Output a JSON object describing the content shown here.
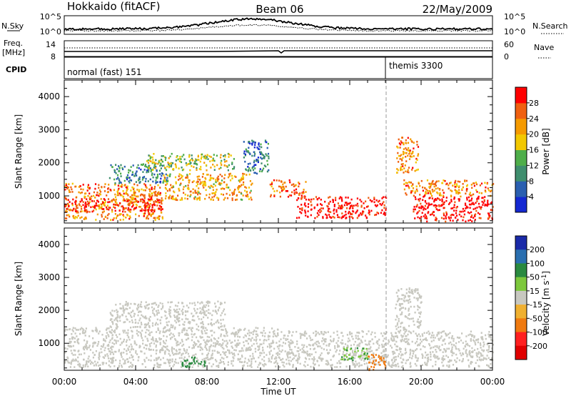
{
  "header": {
    "station": "Hokkaido (fitACF)",
    "beam": "Beam 06",
    "date": "22/May/2009"
  },
  "summary": {
    "nsky_label": "N.Sky",
    "nsky_ticks": [
      "10^5",
      "10^0"
    ],
    "nsearch_label": "N.Search",
    "nsearch_ticks": [
      "10^5",
      "10^0"
    ],
    "freq_label_line1": "Freq.",
    "freq_label_line2": "[MHz]",
    "freq_ticks": [
      "14",
      "8"
    ],
    "nave_label": "Nave",
    "nave_ticks": [
      "60",
      "0"
    ],
    "cpid_label": "CPID",
    "cpid_modes": [
      {
        "name": "normal (fast) 151",
        "start_hour": 0,
        "end_hour": 18
      },
      {
        "name": "themis 3300",
        "start_hour": 18,
        "end_hour": 24
      }
    ]
  },
  "x_axis": {
    "label": "Time UT",
    "ticks": [
      "00:00",
      "04:00",
      "08:00",
      "12:00",
      "16:00",
      "20:00",
      "00:00"
    ],
    "tick_hours": [
      0,
      4,
      8,
      12,
      16,
      20,
      24
    ]
  },
  "power_panel": {
    "ylabel": "Slant Range [km]",
    "yticks": [
      "1000",
      "2000",
      "3000",
      "4000"
    ],
    "colorbar_label": "Power [dB]",
    "colorbar_ticks": [
      "4",
      "8",
      "12",
      "16",
      "20",
      "24",
      "28"
    ],
    "colors": [
      "#1428d2",
      "#2a5fb0",
      "#3f8e6e",
      "#4fae4a",
      "#f2c800",
      "#f59a00",
      "#f06010",
      "#ff0000"
    ]
  },
  "velocity_panel": {
    "ylabel": "Slant Range [km]",
    "yticks": [
      "1000",
      "2000",
      "3000",
      "4000"
    ],
    "colorbar_label": "Velocity [m s",
    "colorbar_label_sup": "-1",
    "colorbar_label_end": "]",
    "colorbar_ticks": [
      "200",
      "100",
      "50",
      "15",
      "-15",
      "-50",
      "-100",
      "-200"
    ],
    "colors": [
      "#1a2aa8",
      "#2a6fb0",
      "#2a8a40",
      "#7dc83c",
      "#c8c8c0",
      "#f0b030",
      "#f07a10",
      "#ff2020",
      "#e00000"
    ]
  },
  "chart_data": [
    {
      "type": "heatmap",
      "title": "Power",
      "xlabel": "Time UT",
      "ylabel": "Slant Range [km]",
      "x_range_hours": [
        0,
        24
      ],
      "ylim": [
        180,
        4500
      ],
      "colorbar": "Power [dB]",
      "clim": [
        0,
        30
      ],
      "regions": [
        {
          "t0": 0.0,
          "t1": 5.5,
          "r0": 300,
          "r1": 1400,
          "level": 22
        },
        {
          "t0": 0.0,
          "t1": 5.5,
          "r0": 550,
          "r1": 950,
          "level": 28
        },
        {
          "t0": 2.5,
          "t1": 6.0,
          "r0": 1400,
          "r1": 2000,
          "level": 9
        },
        {
          "t0": 4.5,
          "t1": 9.5,
          "r0": 1800,
          "r1": 2300,
          "level": 15
        },
        {
          "t0": 5.5,
          "t1": 10.5,
          "r0": 900,
          "r1": 1700,
          "level": 20
        },
        {
          "t0": 10.0,
          "t1": 11.5,
          "r0": 1700,
          "r1": 2700,
          "level": 7
        },
        {
          "t0": 11.5,
          "t1": 13.5,
          "r0": 1000,
          "r1": 1500,
          "level": 24
        },
        {
          "t0": 13.0,
          "t1": 18.0,
          "r0": 350,
          "r1": 1000,
          "level": 29
        },
        {
          "t0": 18.6,
          "t1": 19.8,
          "r0": 1700,
          "r1": 2800,
          "level": 22
        },
        {
          "t0": 19.5,
          "t1": 24.0,
          "r0": 250,
          "r1": 1000,
          "level": 30
        },
        {
          "t0": 19.0,
          "t1": 24.0,
          "r0": 1000,
          "r1": 1500,
          "level": 22
        }
      ]
    },
    {
      "type": "heatmap",
      "title": "Velocity",
      "xlabel": "Time UT",
      "ylabel": "Slant Range [km]",
      "x_range_hours": [
        0,
        24
      ],
      "ylim": [
        180,
        4500
      ],
      "colorbar": "Velocity [m s-1]",
      "clim": [
        -200,
        200
      ],
      "regions": [
        {
          "t0": 0.0,
          "t1": 12.0,
          "r0": 300,
          "r1": 1500,
          "level": 0
        },
        {
          "t0": 2.5,
          "t1": 9.0,
          "r0": 1500,
          "r1": 2300,
          "level": 0
        },
        {
          "t0": 12.0,
          "t1": 24.0,
          "r0": 300,
          "r1": 1400,
          "level": 0
        },
        {
          "t0": 18.5,
          "t1": 20.0,
          "r0": 1400,
          "r1": 2700,
          "level": 0
        },
        {
          "t0": 6.5,
          "t1": 8.0,
          "r0": 300,
          "r1": 600,
          "level": 60
        },
        {
          "t0": 15.5,
          "t1": 17.0,
          "r0": 500,
          "r1": 900,
          "level": 30
        },
        {
          "t0": 17.0,
          "t1": 18.0,
          "r0": 200,
          "r1": 700,
          "level": -60
        }
      ]
    }
  ]
}
